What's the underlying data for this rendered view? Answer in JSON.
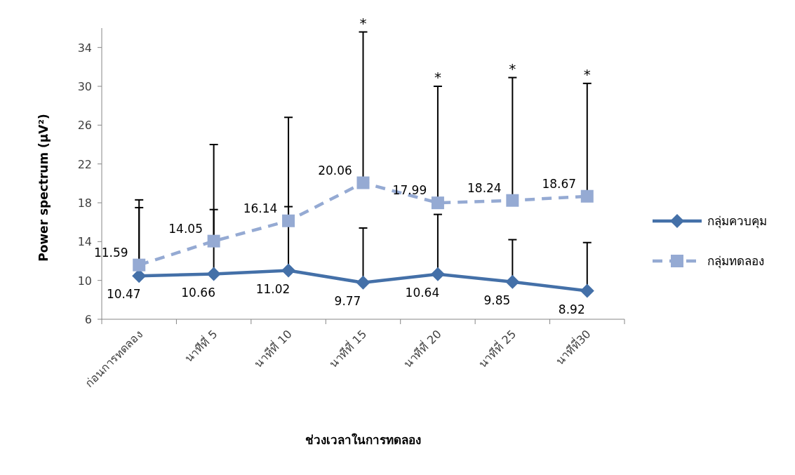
{
  "chart_data": {
    "type": "line",
    "xlabel": "ช่วงเวลาในการทดลอง",
    "ylabel": "Power spectrum  (µV²)",
    "categories": [
      "ก่อนการทดลอง",
      "นาทีที่ 5",
      "นาทีที่ 10",
      "นาทีที่ 15",
      "นาทีที่ 20",
      "นาทีที่ 25",
      "นาทีที่30"
    ],
    "series": [
      {
        "name": "กลุ่มควบคุม",
        "color": "#4470a8",
        "marker": "diamond",
        "line_style": "solid",
        "values": [
          10.47,
          10.66,
          11.02,
          9.77,
          10.64,
          9.85,
          8.92
        ],
        "errors": [
          [
            10.47,
            17.5
          ],
          [
            10.66,
            17.3
          ],
          [
            11.02,
            17.6
          ],
          [
            9.77,
            15.4
          ],
          [
            10.64,
            16.8
          ],
          [
            9.85,
            14.2
          ],
          [
            8.92,
            13.9
          ]
        ]
      },
      {
        "name": "กลุ่มทดลอง",
        "color": "#95aad3",
        "marker": "square",
        "line_style": "dashed",
        "values": [
          11.59,
          14.05,
          16.14,
          20.06,
          17.99,
          18.24,
          18.67
        ],
        "errors": [
          [
            11.59,
            18.3
          ],
          [
            14.05,
            24.0
          ],
          [
            16.14,
            26.8
          ],
          [
            20.06,
            35.6
          ],
          [
            17.99,
            30.0
          ],
          [
            18.24,
            30.9
          ],
          [
            18.67,
            30.3
          ]
        ]
      }
    ],
    "ylim": [
      6,
      36
    ],
    "yticks": [
      6,
      10,
      14,
      18,
      22,
      26,
      30,
      34
    ],
    "data_labels": true,
    "legend": "right",
    "annotations": [
      "*",
      "*",
      "*",
      "*"
    ]
  }
}
